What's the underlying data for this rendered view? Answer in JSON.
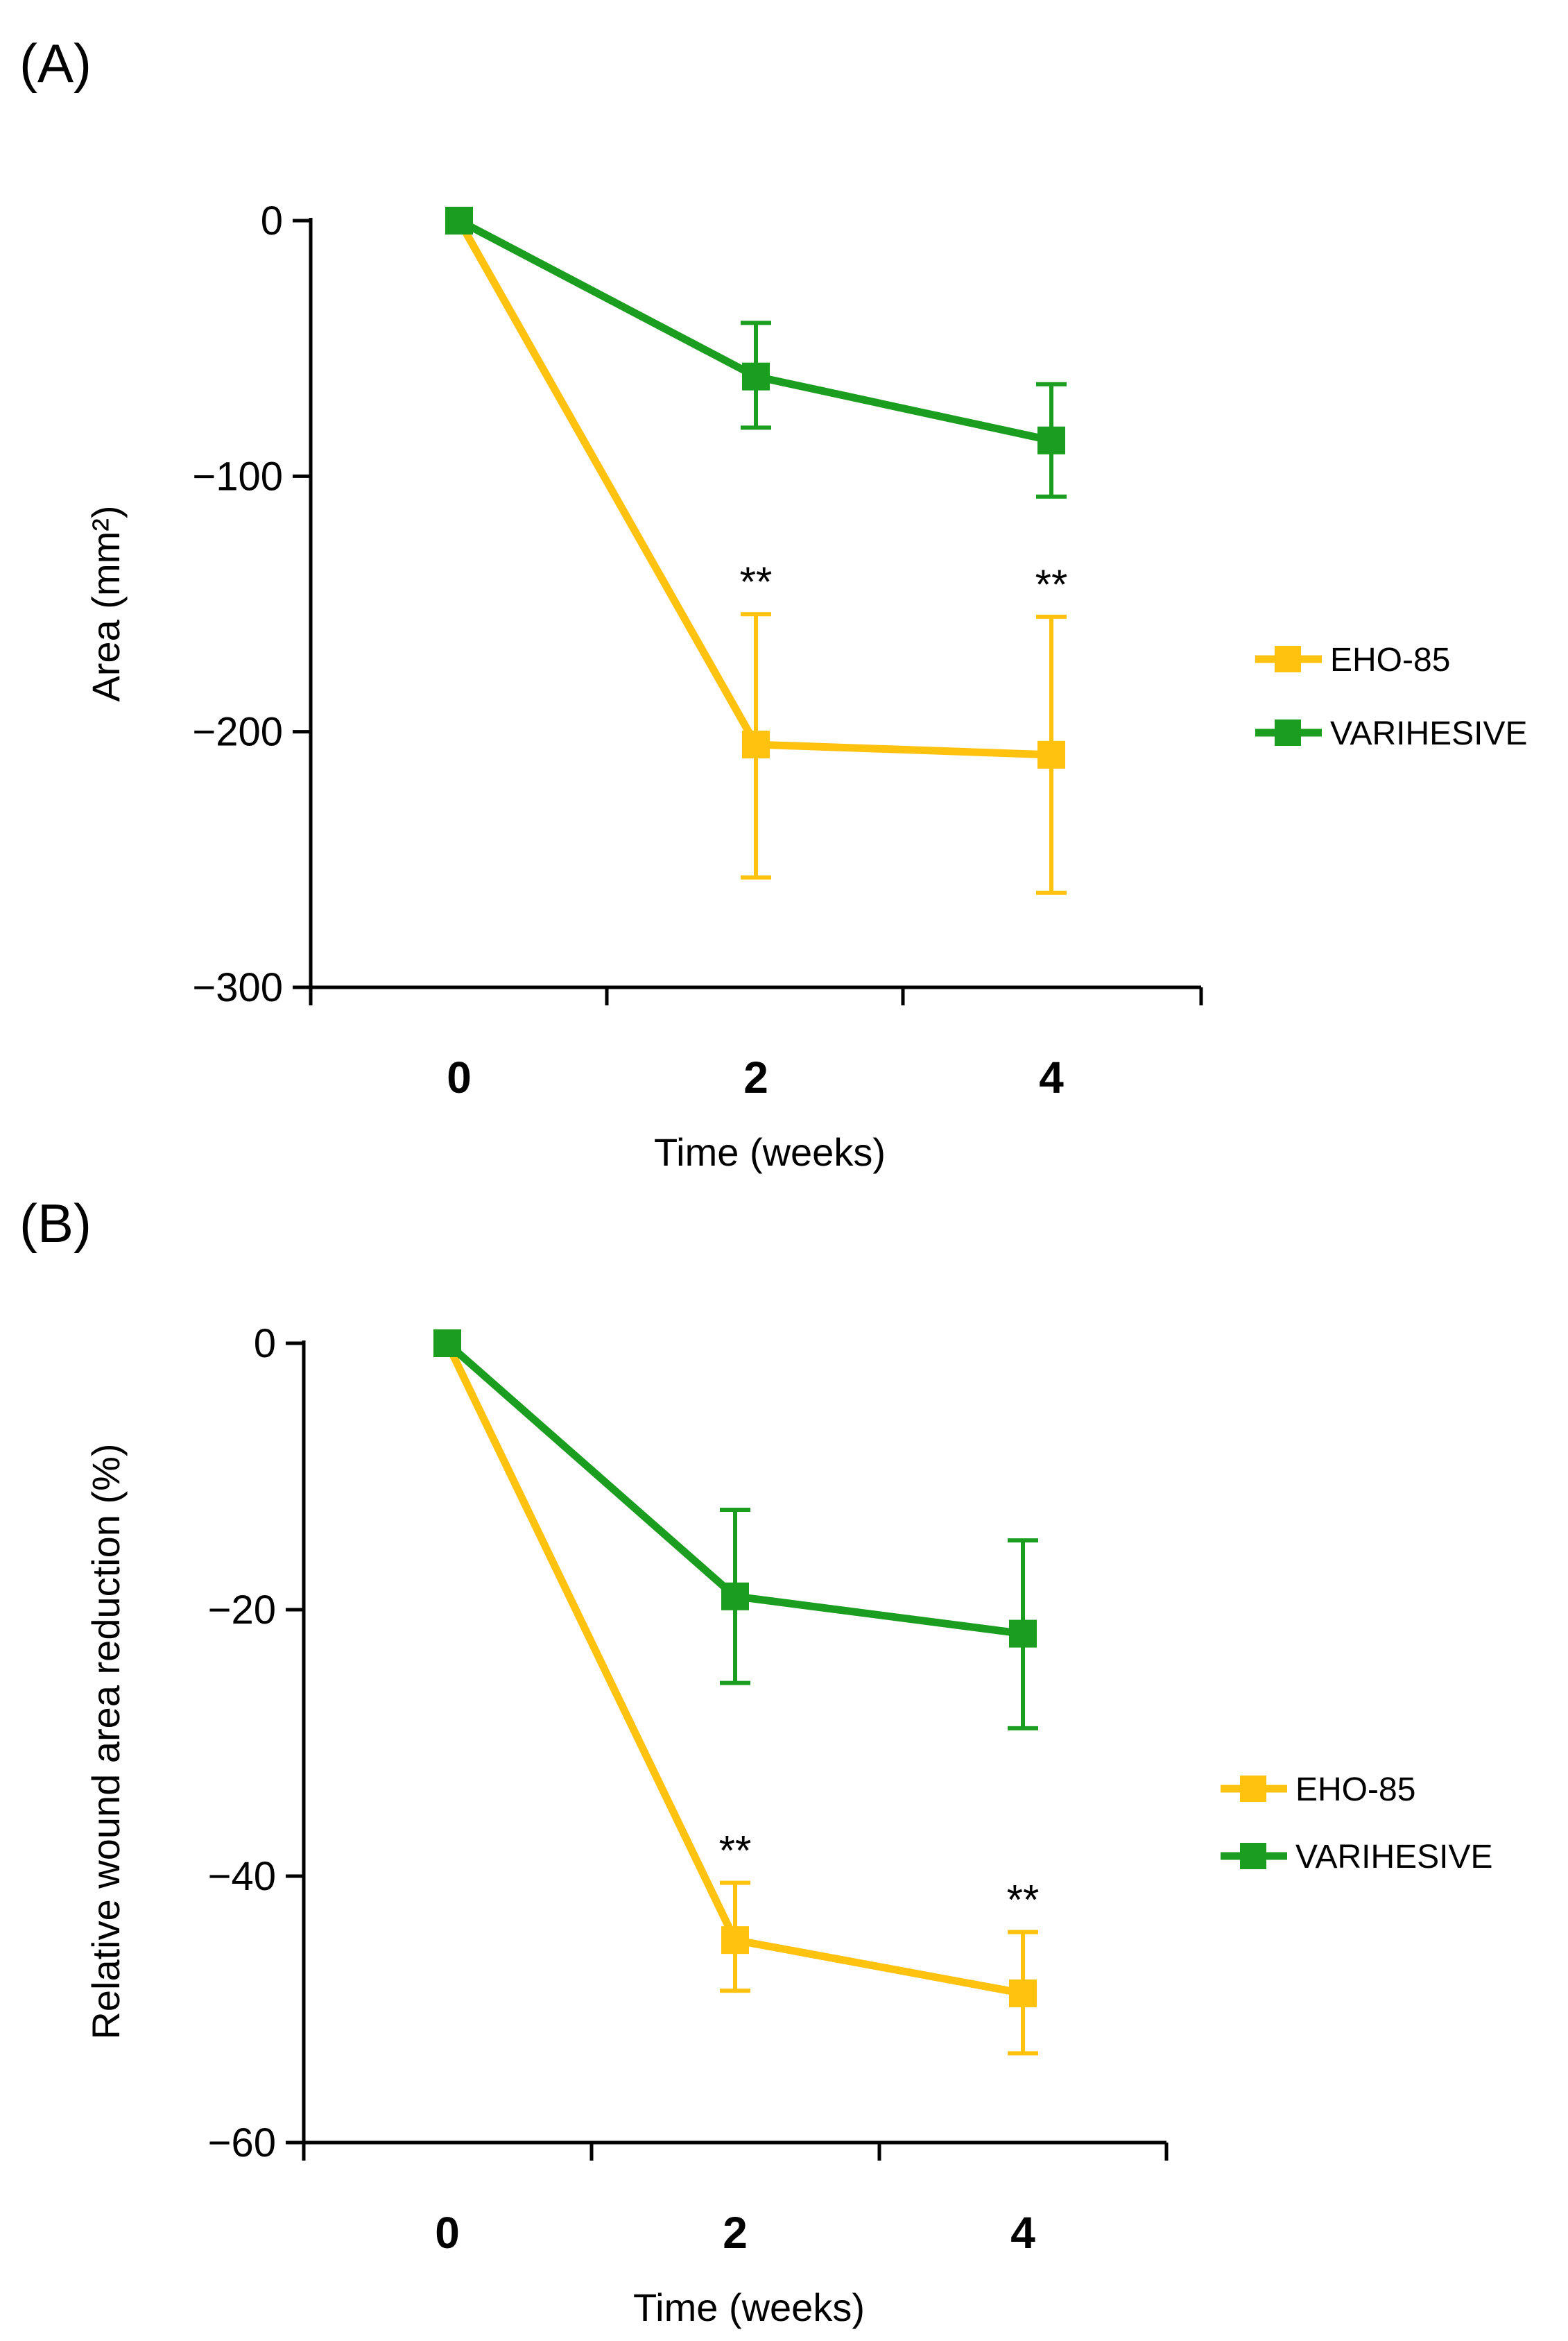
{
  "colors": {
    "eho": "#FFC20E",
    "varihesive": "#1B9E1F",
    "axis": "#000000"
  },
  "chart_data": [
    {
      "type": "line",
      "panel_label": "(A)",
      "xlabel": "Time (weeks)",
      "ylabel": "Area (mm²)",
      "x": [
        0,
        2,
        4
      ],
      "x_tick_labels": [
        "0",
        "2",
        "4"
      ],
      "x_tick_values": [
        0,
        2,
        4
      ],
      "xlim": [
        -1,
        5
      ],
      "xlim_note": "x axis spans beyond data; minor tick marks at category boundaries",
      "ylim": [
        -300,
        0
      ],
      "y_ticks": [
        0,
        -100,
        -200,
        -300
      ],
      "y_tick_labels": [
        "0",
        "−100",
        "−200",
        "−300"
      ],
      "legend": [
        "EHO-85",
        "VARIHESIVE"
      ],
      "legend_position": "right",
      "grid": false,
      "series": [
        {
          "name": "EHO-85",
          "color": "#FFC20E",
          "values": [
            0,
            -205,
            -209
          ],
          "err_upper": [
            0,
            -154,
            -155
          ],
          "err_lower": [
            0,
            -257,
            -263
          ],
          "annotations": [
            "",
            "**",
            "**"
          ]
        },
        {
          "name": "VARIHESIVE",
          "color": "#1B9E1F",
          "values": [
            0,
            -61,
            -86
          ],
          "err_upper": [
            0,
            -40,
            -64
          ],
          "err_lower": [
            0,
            -81,
            -108
          ],
          "annotations": [
            "",
            "",
            ""
          ]
        }
      ]
    },
    {
      "type": "line",
      "panel_label": "(B)",
      "xlabel": "Time (weeks)",
      "ylabel": "Relative wound area reduction (%)",
      "x": [
        0,
        2,
        4
      ],
      "x_tick_labels": [
        "0",
        "2",
        "4"
      ],
      "x_tick_values": [
        0,
        2,
        4
      ],
      "xlim": [
        -1,
        5
      ],
      "ylim": [
        -60,
        0
      ],
      "y_ticks": [
        0,
        -20,
        -40,
        -60
      ],
      "y_tick_labels": [
        "0",
        "−20",
        "−40",
        "−60"
      ],
      "legend": [
        "EHO-85",
        "VARIHESIVE"
      ],
      "legend_position": "right",
      "grid": false,
      "series": [
        {
          "name": "EHO-85",
          "color": "#FFC20E",
          "values": [
            0,
            -44.8,
            -48.8
          ],
          "err_upper": [
            0,
            -40.5,
            -44.2
          ],
          "err_lower": [
            0,
            -48.6,
            -53.3
          ],
          "annotations": [
            "",
            "**",
            "**"
          ]
        },
        {
          "name": "VARIHESIVE",
          "color": "#1B9E1F",
          "values": [
            0,
            -19,
            -21.8
          ],
          "err_upper": [
            0,
            -12.5,
            -14.8
          ],
          "err_lower": [
            0,
            -25.5,
            -28.9
          ],
          "annotations": [
            "",
            "",
            ""
          ]
        }
      ]
    }
  ]
}
